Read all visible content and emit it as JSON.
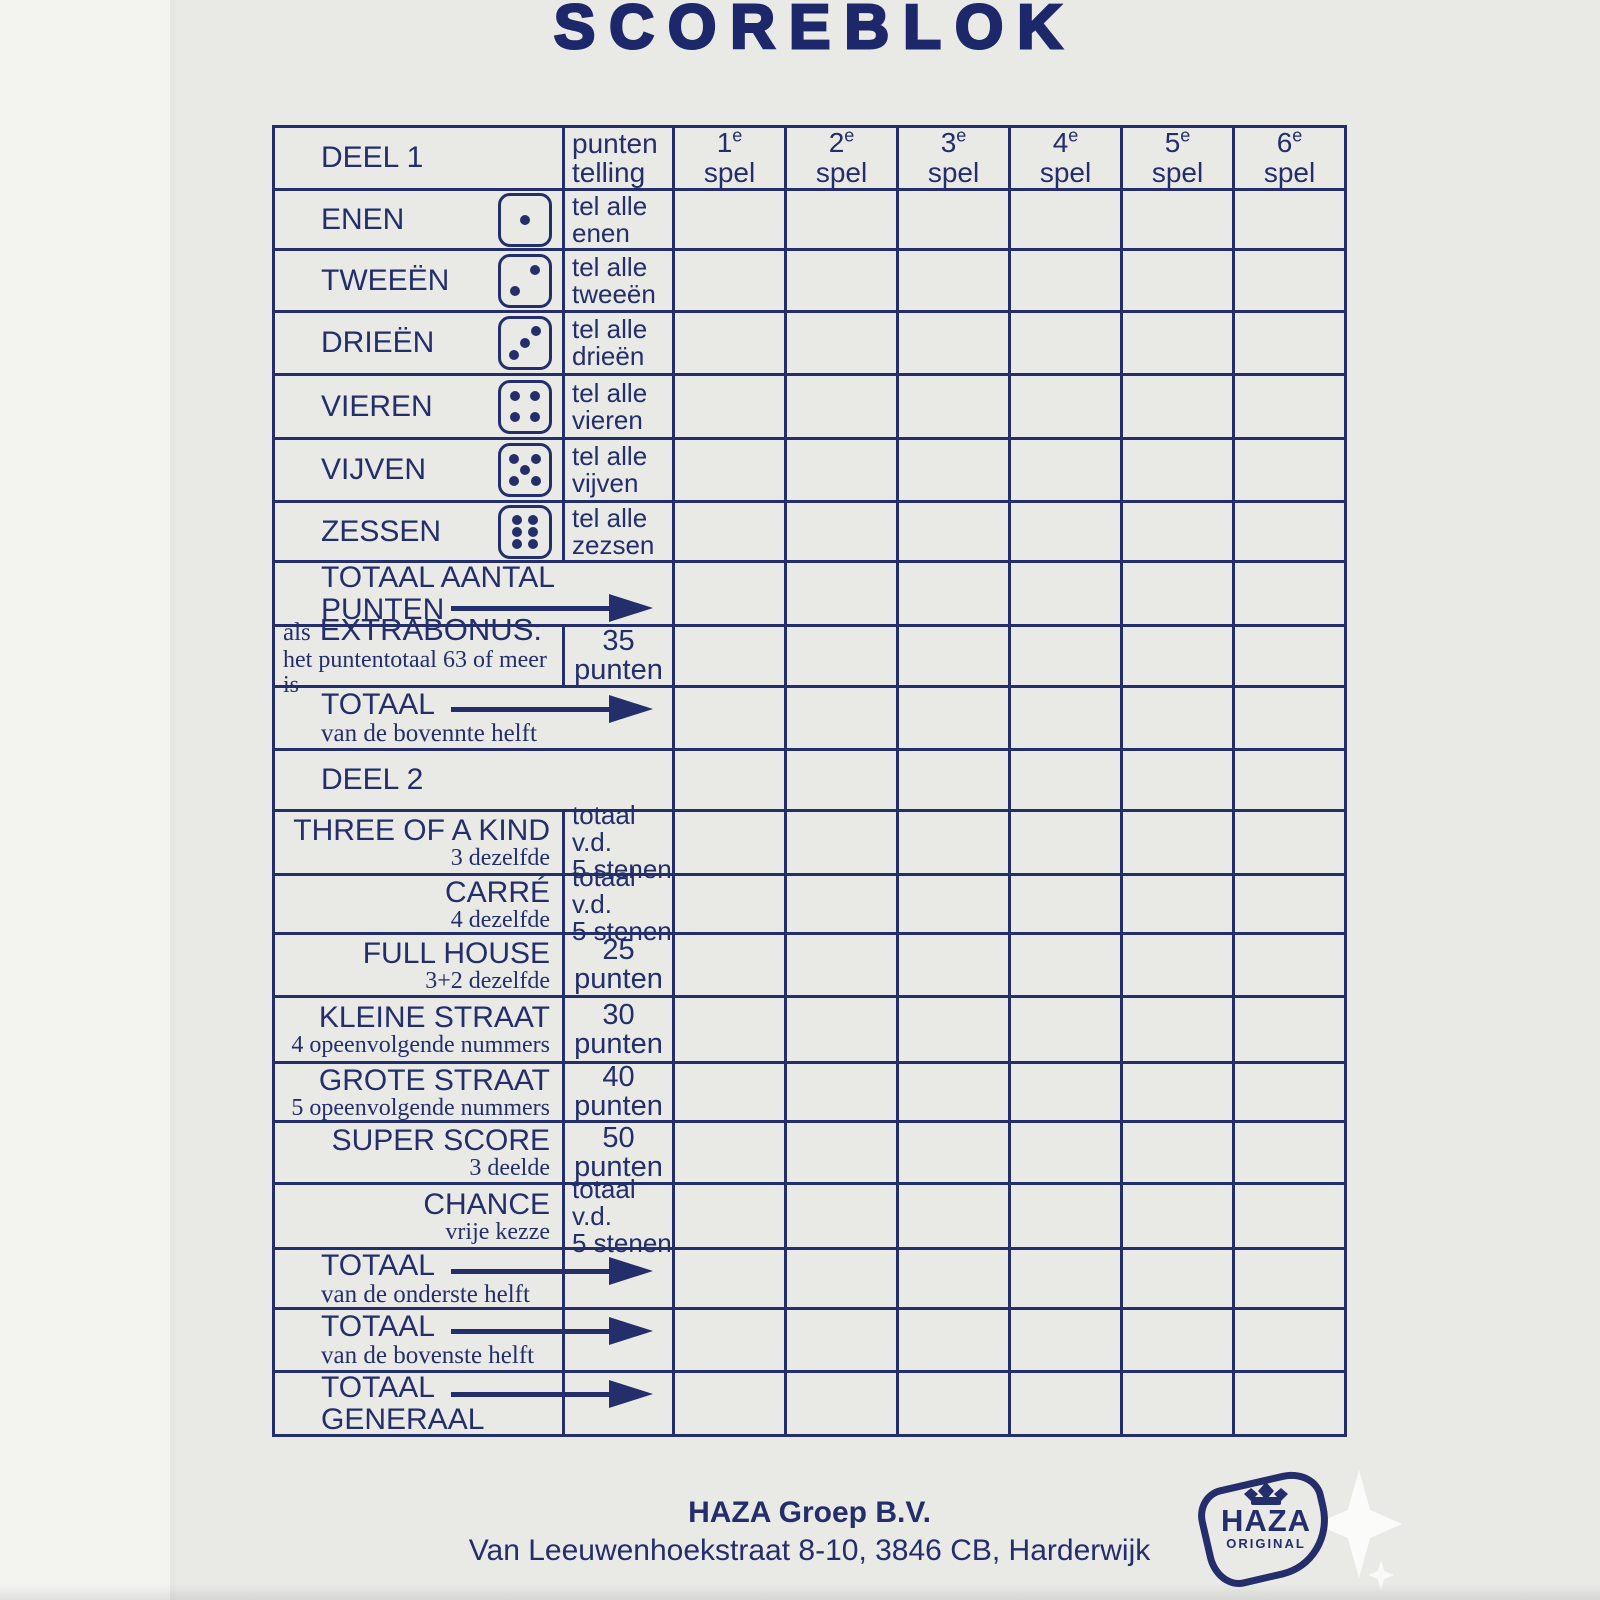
{
  "title": "SCOREBLOK",
  "colors": {
    "ink": "#232e6a",
    "paper": "#e9e9e6"
  },
  "table": {
    "header": {
      "label": "DEEL 1",
      "punten_line1": "punten",
      "punten_line2": "telling",
      "games": [
        {
          "num": "1",
          "sup": "e",
          "word": "spel"
        },
        {
          "num": "2",
          "sup": "e",
          "word": "spel"
        },
        {
          "num": "3",
          "sup": "e",
          "word": "spel"
        },
        {
          "num": "4",
          "sup": "e",
          "word": "spel"
        },
        {
          "num": "5",
          "sup": "e",
          "word": "spel"
        },
        {
          "num": "6",
          "sup": "e",
          "word": "spel"
        }
      ]
    },
    "rows": [
      {
        "type": "dice",
        "label": "ENEN",
        "die": 1,
        "punten": [
          "tel alle",
          "enen"
        ]
      },
      {
        "type": "dice",
        "label": "TWEEËN",
        "die": 2,
        "punten": [
          "tel alle",
          "tweeën"
        ]
      },
      {
        "type": "dice",
        "label": "DRIEËN",
        "die": 3,
        "punten": [
          "tel alle",
          "drieën"
        ]
      },
      {
        "type": "dice",
        "label": "VIEREN",
        "die": 4,
        "punten": [
          "tel alle",
          "vieren"
        ]
      },
      {
        "type": "dice",
        "label": "VIJVEN",
        "die": 5,
        "punten": [
          "tel alle",
          "vijven"
        ]
      },
      {
        "type": "dice",
        "label": "ZESSEN",
        "die": 6,
        "punten": [
          "tel alle",
          "zezsen"
        ]
      },
      {
        "type": "total",
        "line1": "TOTAAL AANTAL",
        "line2": "PUNTEN",
        "arrow_line": 2,
        "merged": true
      },
      {
        "type": "bonus",
        "pre": "als",
        "label": "EXTRABONUS:",
        "sub": "het puntentotaal 63 of meer is",
        "punten": [
          "35",
          "punten"
        ]
      },
      {
        "type": "total",
        "line1": "TOTAAL",
        "sub": "van de bovennte helft",
        "arrow_line": 1,
        "merged": true
      },
      {
        "type": "section",
        "label": "DEEL 2"
      },
      {
        "type": "lower",
        "label": "THREE OF A KIND",
        "sub": "3 dezelfde",
        "punten": [
          "totaal v.d.",
          "5 stenen"
        ],
        "punten_style": "desc"
      },
      {
        "type": "lower",
        "label": "CARRÉ",
        "sub": "4 dezelfde",
        "punten": [
          "totaal v.d.",
          "5 stenen"
        ],
        "punten_style": "desc"
      },
      {
        "type": "lower",
        "label": "FULL HOUSE",
        "sub": "3+2 dezelfde",
        "punten": [
          "25",
          "punten"
        ],
        "punten_style": "value"
      },
      {
        "type": "lower",
        "label": "KLEINE STRAAT",
        "sub": "4 opeenvolgende nummers",
        "punten": [
          "30",
          "punten"
        ],
        "punten_style": "value"
      },
      {
        "type": "lower",
        "label": "GROTE STRAAT",
        "sub": "5 opeenvolgende nummers",
        "punten": [
          "40",
          "punten"
        ],
        "punten_style": "value"
      },
      {
        "type": "lower",
        "label": "SUPER SCORE",
        "sub": "3 deelde",
        "punten": [
          "50",
          "punten"
        ],
        "punten_style": "value"
      },
      {
        "type": "lower",
        "label": "CHANCE",
        "sub": "vrije kezze",
        "punten": [
          "totaal v.d.",
          "5 stenen"
        ],
        "punten_style": "desc"
      },
      {
        "type": "total",
        "line1": "TOTAAL",
        "sub": "van de onderste helft",
        "arrow_line": 1,
        "merged": false
      },
      {
        "type": "total",
        "line1": "TOTAAL",
        "sub": "van de bovenste helft",
        "arrow_line": 1,
        "merged": false
      },
      {
        "type": "total",
        "line1": "TOTAAL",
        "line2": "GENERAAL",
        "arrow_line": 1,
        "merged": false
      }
    ]
  },
  "footer": {
    "company": "HAZA Groep B.V.",
    "address": "Van Leeuwenhoekstraat 8-10, 3846 CB, Harderwijk"
  },
  "logo": {
    "brand": "HAZA",
    "sub": "ORIGINAL"
  }
}
